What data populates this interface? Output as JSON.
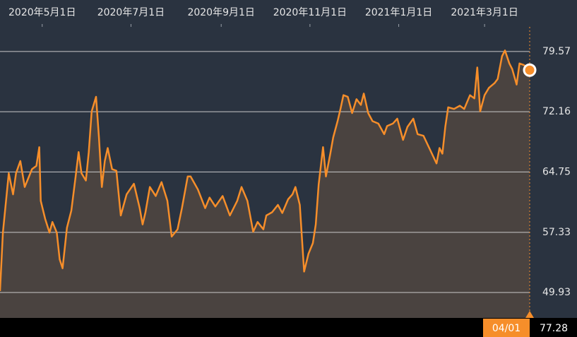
{
  "chart_data": {
    "type": "area-line",
    "x": [
      "2020-04-02",
      "2020-04-04",
      "2020-04-08",
      "2020-04-11",
      "2020-04-13",
      "2020-04-16",
      "2020-04-19",
      "2020-04-24",
      "2020-04-27",
      "2020-04-29",
      "2020-04-30",
      "2020-05-03",
      "2020-05-06",
      "2020-05-08",
      "2020-05-11",
      "2020-05-13",
      "2020-05-15",
      "2020-05-18",
      "2020-05-21",
      "2020-05-24",
      "2020-05-26",
      "2020-05-28",
      "2020-05-31",
      "2020-06-02",
      "2020-06-04",
      "2020-06-07",
      "2020-06-09",
      "2020-06-11",
      "2020-06-13",
      "2020-06-15",
      "2020-06-18",
      "2020-06-21",
      "2020-06-24",
      "2020-06-28",
      "2020-07-03",
      "2020-07-07",
      "2020-07-09",
      "2020-07-11",
      "2020-07-14",
      "2020-07-18",
      "2020-07-22",
      "2020-07-26",
      "2020-07-29",
      "2020-08-02",
      "2020-08-05",
      "2020-08-09",
      "2020-08-11",
      "2020-08-16",
      "2020-08-21",
      "2020-08-24",
      "2020-08-28",
      "2020-09-02",
      "2020-09-07",
      "2020-09-12",
      "2020-09-15",
      "2020-09-19",
      "2020-09-23",
      "2020-09-26",
      "2020-09-30",
      "2020-10-02",
      "2020-10-06",
      "2020-10-10",
      "2020-10-13",
      "2020-10-17",
      "2020-10-20",
      "2020-10-22",
      "2020-10-25",
      "2020-10-28",
      "2020-10-31",
      "2020-11-03",
      "2020-11-05",
      "2020-11-07",
      "2020-11-10",
      "2020-11-12",
      "2020-11-15",
      "2020-11-17",
      "2020-11-20",
      "2020-11-22",
      "2020-11-24",
      "2020-11-27",
      "2020-11-30",
      "2020-12-03",
      "2020-12-06",
      "2020-12-08",
      "2020-12-11",
      "2020-12-14",
      "2020-12-18",
      "2020-12-22",
      "2020-12-24",
      "2020-12-28",
      "2020-12-31",
      "2021-01-04",
      "2021-01-07",
      "2021-01-11",
      "2021-01-14",
      "2021-01-18",
      "2021-01-22",
      "2021-01-27",
      "2021-01-29",
      "2021-01-31",
      "2021-02-02",
      "2021-02-04",
      "2021-02-08",
      "2021-02-12",
      "2021-02-15",
      "2021-02-19",
      "2021-02-22",
      "2021-02-24",
      "2021-02-26",
      "2021-03-01",
      "2021-03-04",
      "2021-03-08",
      "2021-03-10",
      "2021-03-13",
      "2021-03-15",
      "2021-03-18",
      "2021-03-20",
      "2021-03-23",
      "2021-03-25",
      "2021-03-28",
      "2021-04-01"
    ],
    "series": [
      {
        "color": "#f68e2a",
        "values": [
          50.1,
          57.3,
          64.6,
          62.0,
          64.6,
          66.1,
          62.9,
          65.1,
          65.5,
          67.8,
          61.2,
          59.0,
          57.3,
          58.6,
          57.3,
          54.0,
          52.9,
          57.9,
          60.0,
          64.2,
          67.2,
          64.6,
          63.7,
          67.2,
          72.2,
          74.0,
          69.0,
          62.9,
          66.1,
          67.7,
          65.1,
          64.9,
          59.4,
          62.0,
          63.3,
          60.3,
          58.3,
          59.8,
          62.9,
          61.8,
          63.5,
          61.2,
          56.8,
          57.7,
          60.3,
          64.2,
          64.2,
          62.6,
          60.3,
          61.6,
          60.5,
          61.8,
          59.4,
          61.2,
          62.9,
          61.2,
          57.4,
          58.6,
          57.7,
          59.4,
          59.8,
          60.7,
          59.7,
          61.4,
          62.0,
          62.9,
          60.7,
          52.5,
          54.7,
          56.0,
          58.3,
          63.2,
          67.8,
          64.2,
          67.0,
          69.0,
          71.0,
          72.5,
          74.2,
          74.0,
          72.0,
          73.7,
          73.0,
          74.4,
          72.0,
          71.0,
          70.7,
          69.4,
          70.4,
          70.7,
          71.3,
          68.7,
          70.3,
          71.3,
          69.4,
          69.2,
          67.7,
          65.8,
          67.7,
          67.0,
          70.3,
          72.7,
          72.5,
          72.9,
          72.5,
          74.2,
          73.8,
          77.6,
          72.2,
          74.2,
          75.1,
          75.7,
          76.2,
          79.0,
          79.7,
          78.1,
          77.4,
          75.5,
          78.1,
          77.9,
          77.28
        ]
      }
    ],
    "xlim": [
      "2020-04-02",
      "2021-04-01"
    ],
    "xticks": [
      {
        "value": "2020-05-01",
        "label": "2020年5月1日"
      },
      {
        "value": "2020-07-01",
        "label": "2020年7月1日"
      },
      {
        "value": "2020-09-01",
        "label": "2020年9月1日"
      },
      {
        "value": "2020-11-01",
        "label": "2020年11月1日"
      },
      {
        "value": "2021-01-01",
        "label": "2021年1月1日"
      },
      {
        "value": "2021-03-01",
        "label": "2021年3月1日"
      }
    ],
    "ylim": [
      46.8,
      82.6
    ],
    "yticks": [
      49.93,
      57.33,
      64.75,
      72.16,
      79.57
    ],
    "grid": true,
    "crosshair_label": "04/01"
  }
}
